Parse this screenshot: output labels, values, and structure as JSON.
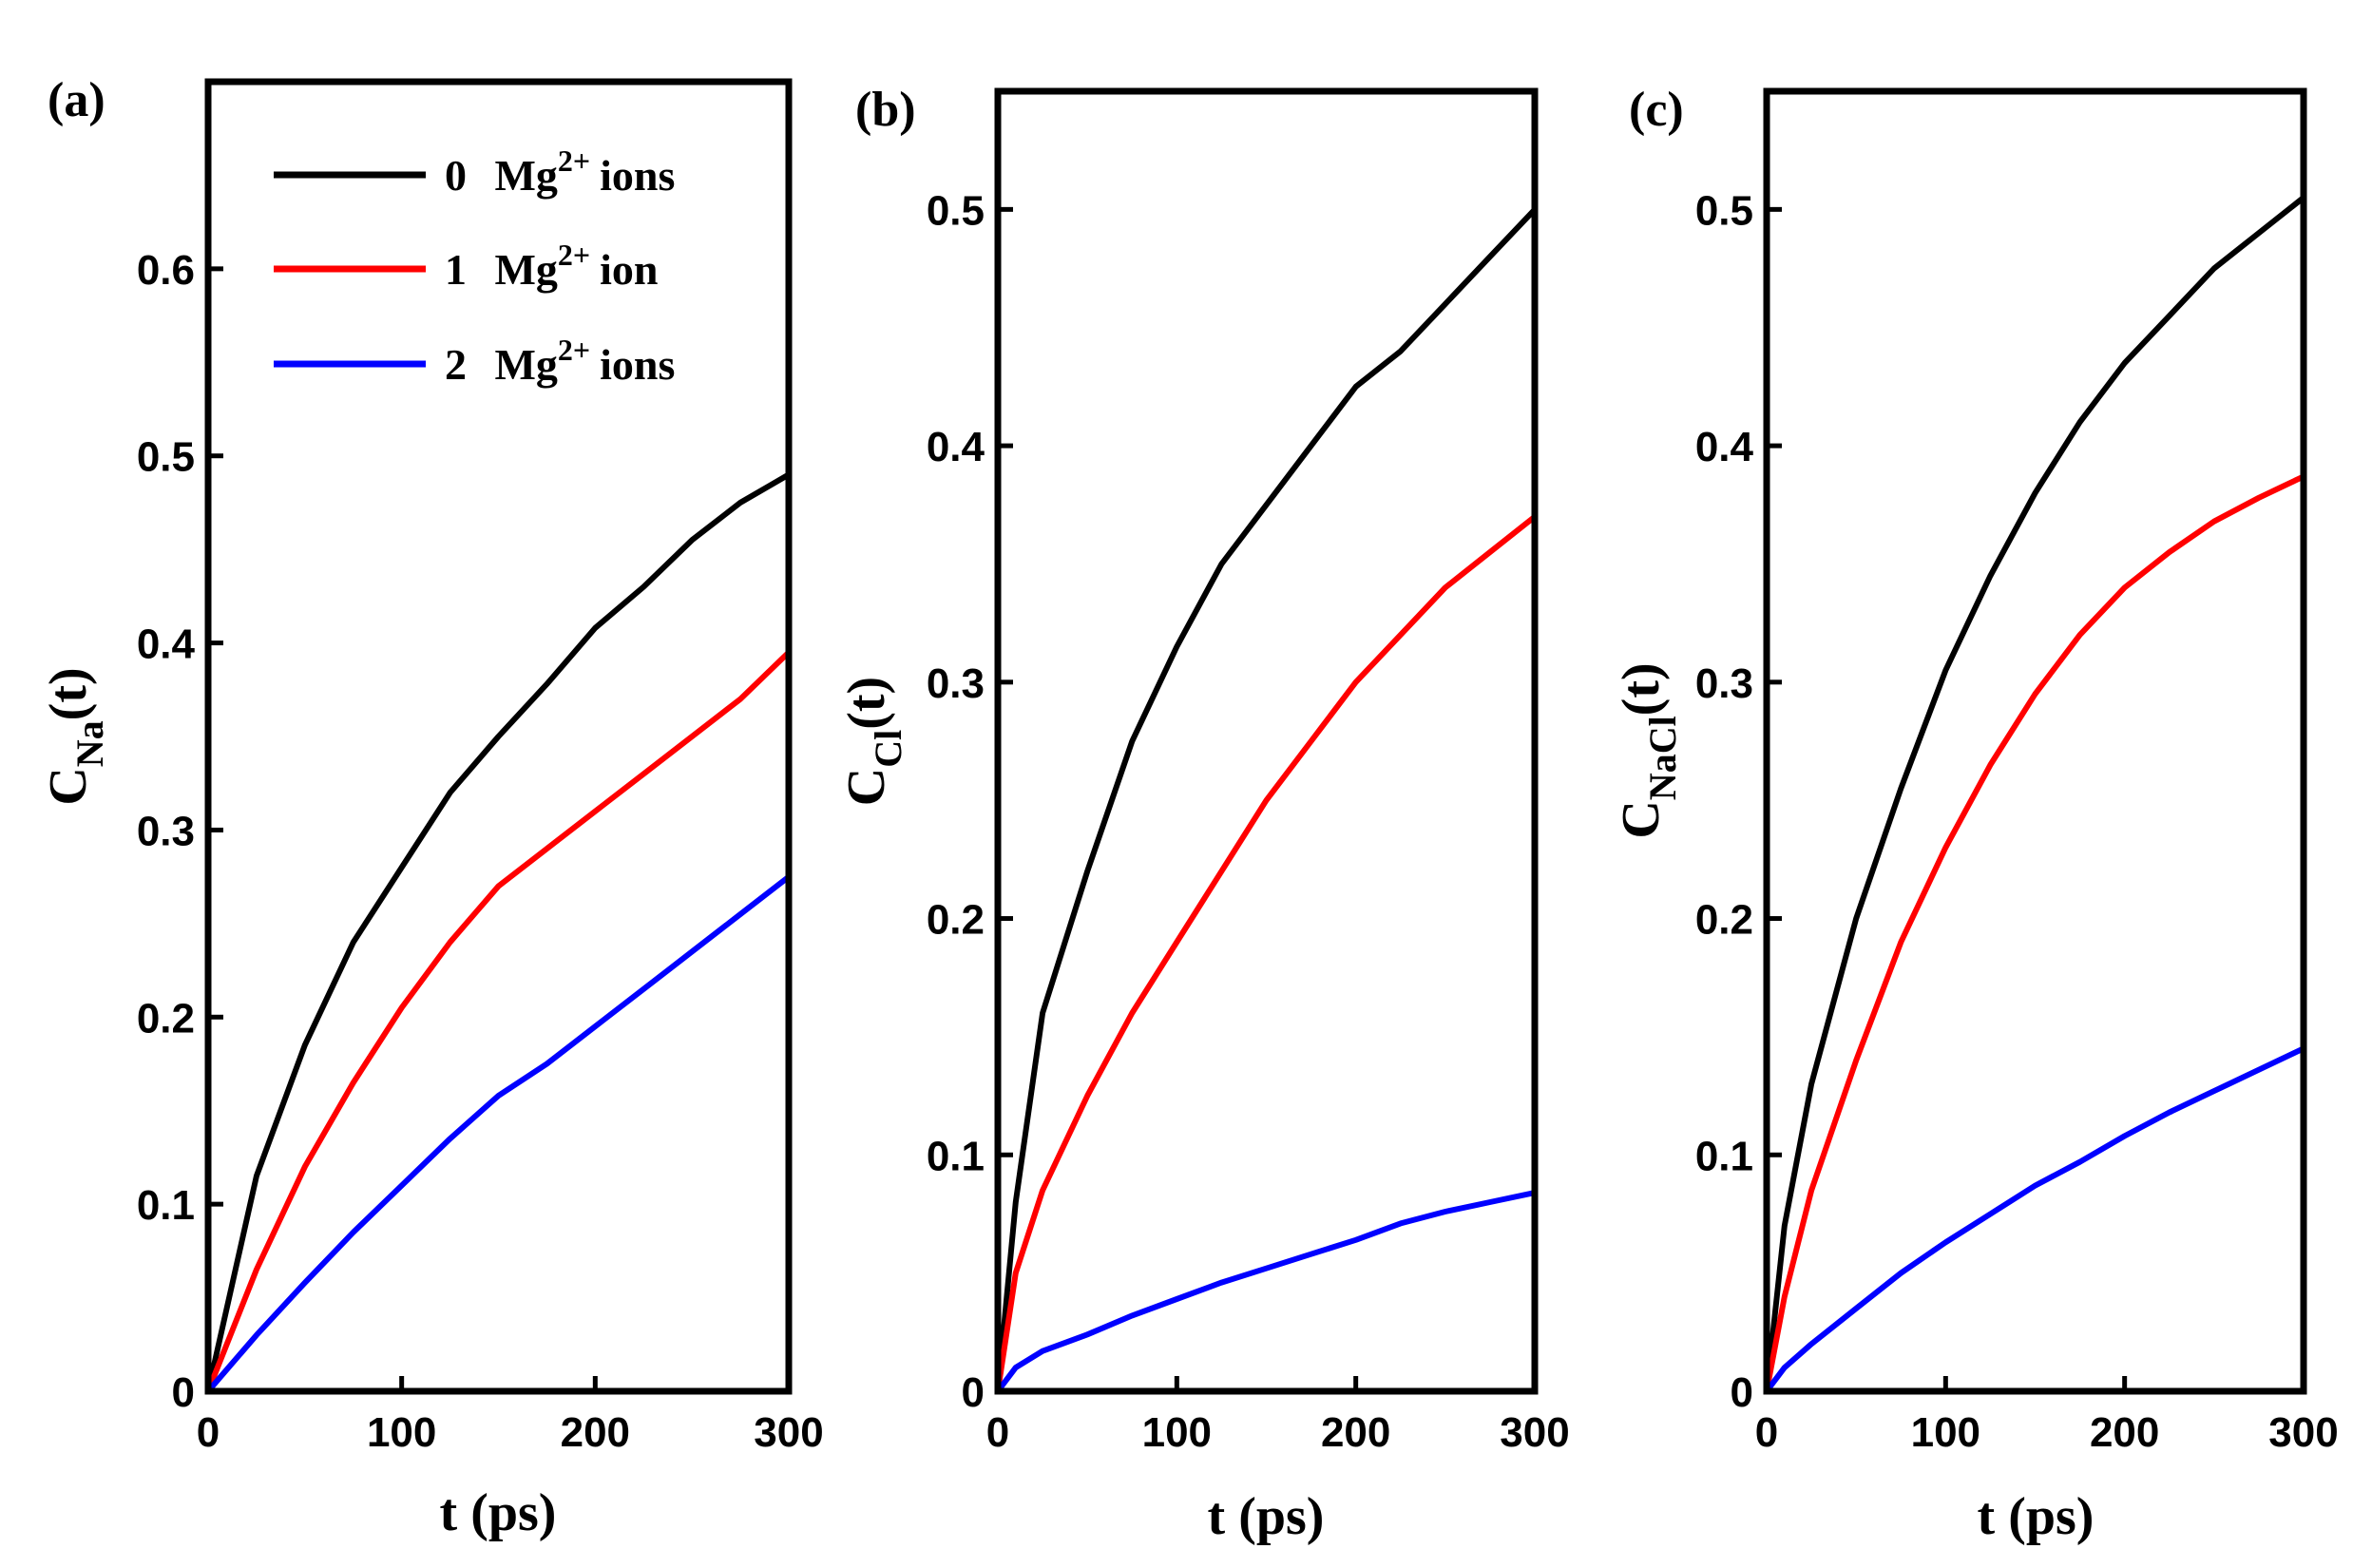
{
  "chart_data": [
    {
      "type": "line",
      "panel_label": "(a)",
      "ylabel": {
        "main": "C",
        "sub": "Na",
        "suffix": "(t)"
      },
      "xlabel": "t (ps)",
      "xlim": [
        0,
        300
      ],
      "ylim": [
        0,
        0.7
      ],
      "xticks": [
        0,
        100,
        200,
        300
      ],
      "xtick_labels": [
        "0",
        "100",
        "200",
        "300"
      ],
      "yticks": [
        0,
        0.1,
        0.2,
        0.3,
        0.4,
        0.5,
        0.6
      ],
      "ytick_labels": [
        "0",
        "0.1",
        "0.2",
        "0.3",
        "0.4",
        "0.5",
        "0.6"
      ],
      "x": [
        0,
        25,
        50,
        75,
        100,
        125,
        150,
        175,
        200,
        225,
        250,
        275,
        300
      ],
      "series": [
        {
          "name": "0 Mg2+ ions",
          "color": "#000000",
          "values": [
            0.0,
            0.115,
            0.185,
            0.24,
            0.28,
            0.32,
            0.35,
            0.378,
            0.408,
            0.43,
            0.455,
            0.475,
            0.49
          ]
        },
        {
          "name": "1 Mg2+ ion",
          "color": "#ff0000",
          "values": [
            0.0,
            0.065,
            0.12,
            0.165,
            0.205,
            0.24,
            0.27,
            0.29,
            0.31,
            0.33,
            0.35,
            0.37,
            0.395
          ]
        },
        {
          "name": "2 Mg2+ ions",
          "color": "#0000ff",
          "values": [
            0.0,
            0.03,
            0.058,
            0.085,
            0.11,
            0.135,
            0.158,
            0.175,
            0.195,
            0.215,
            0.235,
            0.255,
            0.275
          ]
        }
      ]
    },
    {
      "type": "line",
      "panel_label": "(b)",
      "ylabel": {
        "main": "C",
        "sub": "Cl",
        "suffix": "(t)"
      },
      "xlabel": "t (ps)",
      "xlim": [
        0,
        300
      ],
      "ylim": [
        0,
        0.55
      ],
      "xticks": [
        0,
        100,
        200,
        300
      ],
      "xtick_labels": [
        "0",
        "100",
        "200",
        "300"
      ],
      "yticks": [
        0,
        0.1,
        0.2,
        0.3,
        0.4,
        0.5
      ],
      "ytick_labels": [
        "0",
        "0.1",
        "0.2",
        "0.3",
        "0.4",
        "0.5"
      ],
      "x": [
        0,
        10,
        25,
        50,
        75,
        100,
        125,
        150,
        175,
        200,
        225,
        250,
        275,
        300
      ],
      "series": [
        {
          "name": "0 Mg2+ ions",
          "color": "#000000",
          "values": [
            0.0,
            0.08,
            0.16,
            0.22,
            0.275,
            0.315,
            0.35,
            0.375,
            0.4,
            0.425,
            0.44,
            0.46,
            0.48,
            0.5
          ]
        },
        {
          "name": "1 Mg2+ ion",
          "color": "#ff0000",
          "values": [
            0.0,
            0.05,
            0.085,
            0.125,
            0.16,
            0.19,
            0.22,
            0.25,
            0.275,
            0.3,
            0.32,
            0.34,
            0.355,
            0.37
          ]
        },
        {
          "name": "2 Mg2+ ions",
          "color": "#0000ff",
          "values": [
            0.0,
            0.01,
            0.017,
            0.024,
            0.032,
            0.039,
            0.046,
            0.052,
            0.058,
            0.064,
            0.071,
            0.076,
            0.08,
            0.084
          ]
        }
      ]
    },
    {
      "type": "line",
      "panel_label": "(c)",
      "ylabel": {
        "main": "C",
        "sub": "NaCl",
        "suffix": "(t)"
      },
      "xlabel": "t (ps)",
      "xlim": [
        0,
        300
      ],
      "ylim": [
        0,
        0.55
      ],
      "xticks": [
        0,
        100,
        200,
        300
      ],
      "xtick_labels": [
        "0",
        "100",
        "200",
        "300"
      ],
      "yticks": [
        0,
        0.1,
        0.2,
        0.3,
        0.4,
        0.5
      ],
      "ytick_labels": [
        "0",
        "0.1",
        "0.2",
        "0.3",
        "0.4",
        "0.5"
      ],
      "x": [
        0,
        10,
        25,
        50,
        75,
        100,
        125,
        150,
        175,
        200,
        225,
        250,
        275,
        300
      ],
      "series": [
        {
          "name": "0 Mg2+ ions",
          "color": "#000000",
          "values": [
            0.0,
            0.07,
            0.13,
            0.2,
            0.255,
            0.305,
            0.345,
            0.38,
            0.41,
            0.435,
            0.455,
            0.475,
            0.49,
            0.505
          ]
        },
        {
          "name": "1 Mg2+ ion",
          "color": "#ff0000",
          "values": [
            0.0,
            0.04,
            0.085,
            0.14,
            0.19,
            0.23,
            0.265,
            0.295,
            0.32,
            0.34,
            0.355,
            0.368,
            0.378,
            0.387
          ]
        },
        {
          "name": "2 Mg2+ ions",
          "color": "#0000ff",
          "values": [
            0.0,
            0.01,
            0.02,
            0.035,
            0.05,
            0.063,
            0.075,
            0.087,
            0.097,
            0.108,
            0.118,
            0.127,
            0.136,
            0.145
          ]
        }
      ]
    }
  ],
  "legend": {
    "entries": [
      {
        "number": "0",
        "species": "Mg",
        "charge": "2+",
        "word": "ions",
        "color": "#000000"
      },
      {
        "number": "1",
        "species": "Mg",
        "charge": "2+",
        "word": "ion",
        "color": "#ff0000"
      },
      {
        "number": "2",
        "species": "Mg",
        "charge": "2+",
        "word": "ions",
        "color": "#0000ff"
      }
    ]
  }
}
